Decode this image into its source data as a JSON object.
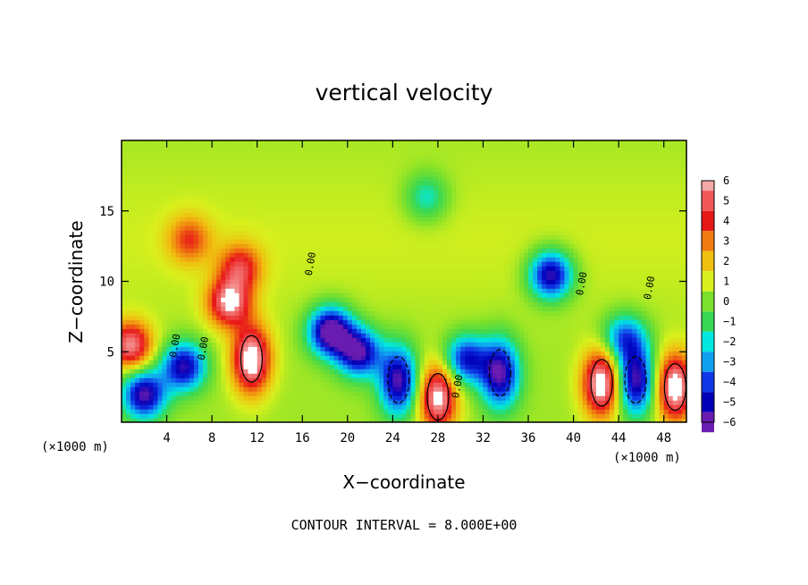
{
  "chart_data": {
    "type": "heatmap",
    "title": "vertical velocity",
    "xlabel": "X−coordinate",
    "ylabel": "Z−coordinate",
    "x_unit_left": "(×1000 m)",
    "x_unit_right": "(×1000 m)",
    "xlim": [
      0,
      50
    ],
    "ylim": [
      0,
      20
    ],
    "x_ticks": [
      4,
      8,
      12,
      16,
      20,
      24,
      28,
      32,
      36,
      40,
      44,
      48
    ],
    "x_tick_labels": [
      "4",
      "8",
      "12",
      "16",
      "20",
      "24",
      "28",
      "32",
      "36",
      "40",
      "44",
      "48"
    ],
    "y_ticks": [
      5,
      10,
      15
    ],
    "y_tick_labels": [
      "5",
      "10",
      "15"
    ],
    "colorbar": {
      "levels": [
        6,
        5,
        4,
        3,
        2,
        1,
        0,
        -1,
        -2,
        -3,
        -4,
        -5,
        -6
      ],
      "labels": [
        "6",
        "5",
        "4",
        "3",
        "2",
        "1",
        "0",
        "−1",
        "−2",
        "−3",
        "−4",
        "−5",
        "−6"
      ],
      "colors": [
        "#f4a8a8",
        "#f05858",
        "#e81818",
        "#f07a10",
        "#f0c010",
        "#d8f01c",
        "#7ae02c",
        "#38d854",
        "#00e8e0",
        "#10a0f0",
        "#1038e8",
        "#0000b8",
        "#6a1cb0"
      ]
    },
    "background_value": 0.4,
    "features": [
      {
        "x": 11.5,
        "z": 4.5,
        "w": 3.0,
        "kind": "updraft-core"
      },
      {
        "x": 9.5,
        "z": 8.5,
        "w": 2.5,
        "kind": "updraft"
      },
      {
        "x": 10.5,
        "z": 11.0,
        "w": 1.8,
        "kind": "updraft"
      },
      {
        "x": 0.8,
        "z": 5.5,
        "w": 2.5,
        "kind": "updraft"
      },
      {
        "x": 6.0,
        "z": 13.0,
        "w": 1.4,
        "kind": "updraft"
      },
      {
        "x": 42.5,
        "z": 2.8,
        "w": 3.0,
        "kind": "updraft-core"
      },
      {
        "x": 49.0,
        "z": 2.5,
        "w": 3.0,
        "kind": "updraft-core"
      },
      {
        "x": 28.0,
        "z": 1.8,
        "w": 2.8,
        "kind": "updraft-core"
      },
      {
        "x": 2.0,
        "z": 2.0,
        "w": -3.0,
        "kind": "downdraft"
      },
      {
        "x": 5.5,
        "z": 4.0,
        "w": -2.8,
        "kind": "downdraft"
      },
      {
        "x": 18.5,
        "z": 6.5,
        "w": -3.5,
        "kind": "downdraft"
      },
      {
        "x": 21.0,
        "z": 5.0,
        "w": -3.0,
        "kind": "downdraft"
      },
      {
        "x": 24.5,
        "z": 3.0,
        "w": -3.0,
        "kind": "downdraft-core"
      },
      {
        "x": 33.5,
        "z": 3.5,
        "w": -3.0,
        "kind": "downdraft-core"
      },
      {
        "x": 30.5,
        "z": 4.5,
        "w": -2.5,
        "kind": "downdraft"
      },
      {
        "x": 38.0,
        "z": 10.5,
        "w": -3.0,
        "kind": "downdraft"
      },
      {
        "x": 45.5,
        "z": 3.0,
        "w": -3.0,
        "kind": "downdraft-core"
      },
      {
        "x": 44.5,
        "z": 6.0,
        "w": -2.0,
        "kind": "downdraft"
      },
      {
        "x": 27.0,
        "z": 16.0,
        "w": -1.2,
        "kind": "downdraft"
      }
    ],
    "contour_labels": [
      "0.00",
      "0.00",
      "0.00",
      "0.00",
      "0.00",
      "0.00"
    ],
    "footer": "CONTOUR INTERVAL = 8.000E+00",
    "grid": false,
    "legend_placement": "right"
  }
}
